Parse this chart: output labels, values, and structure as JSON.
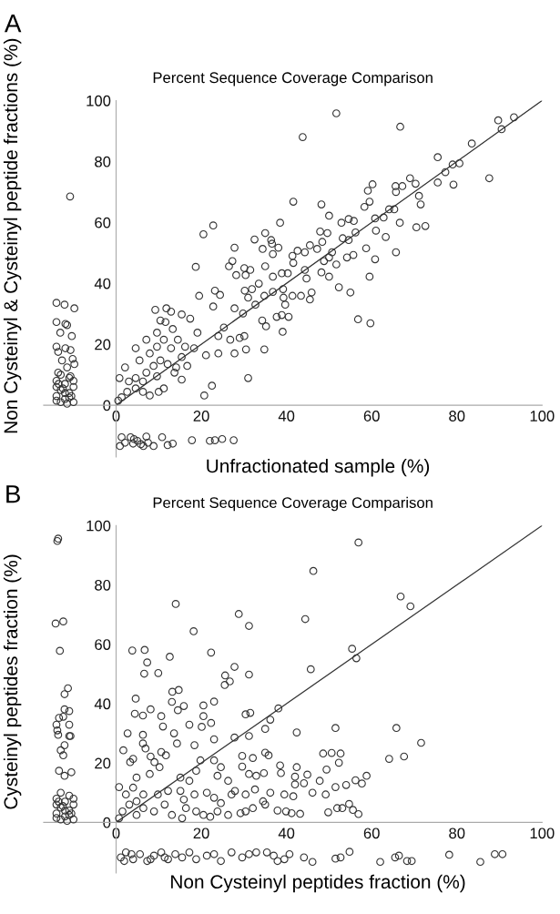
{
  "chart_data": [
    {
      "type": "scatter",
      "title": "Percent Sequence Coverage Comparison",
      "xlabel": "Unfractionated sample (%)",
      "ylabel": "Non Cysteinyl & Cysteinyl peptide fractions (%)",
      "annotations": [
        "A"
      ],
      "xlim": [
        -17,
        100
      ],
      "ylim": [
        -17,
        100
      ],
      "xticks": [
        0,
        20,
        40,
        60,
        80,
        100
      ],
      "yticks": [
        0,
        20,
        40,
        60,
        80,
        100
      ],
      "grid": false,
      "legend": false,
      "marker": "circle",
      "series": [
        {
          "color": "#333333",
          "x": [
            51.7,
            66.7,
            43.8,
            89.7,
            93.4,
            90.5,
            87.6,
            83.5,
            80.6,
            79,
            79.2,
            75.5,
            75.5,
            77.3,
            69,
            70.3,
            71.1,
            71.5,
            70.5,
            72.6,
            65.6,
            67.2,
            65.7,
            66.6,
            65.7,
            65.3,
            64.1,
            62.8,
            60.8,
            61,
            60.2,
            59.1,
            59.5,
            58.3,
            58.7,
            59.5,
            59.7,
            56.8,
            60.8,
            63.3,
            55.8,
            54.6,
            56.2,
            54.6,
            52.9,
            53.2,
            55.7,
            54.2,
            55,
            52.3,
            51.7,
            50,
            50.7,
            50,
            50,
            49.6,
            47.9,
            48.2,
            48.4,
            48.2,
            48.8,
            47.2,
            45.5,
            44.3,
            41.6,
            41.4,
            41.6,
            42.6,
            44.3,
            44.7,
            45.9,
            45.5,
            43.4,
            41.4,
            40.5,
            39.1,
            38.5,
            35,
            36.4,
            36.6,
            34.4,
            36.8,
            32.5,
            38.1,
            35,
            36.8,
            38.9,
            40.3,
            39.2,
            36.8,
            34.8,
            33.5,
            37.7,
            34.3,
            35.2,
            34.8,
            39.3,
            39.7,
            38.9,
            30.4,
            28.2,
            30.1,
            31.5,
            27.8,
            27.3,
            26.5,
            31,
            30.5,
            30.1,
            29,
            27.8,
            26.8,
            29.8,
            31,
            31.9,
            32.7,
            30.2,
            27.8,
            22.8,
            20.5,
            18.7,
            19.5,
            23.2,
            24.4,
            22.8,
            25.3,
            24,
            24,
            22.5,
            20.7,
            21.1,
            19.1,
            17.4,
            15.4,
            16.2,
            18.3,
            16.7,
            15.4,
            12.9,
            11.8,
            9.2,
            10.4,
            11.6,
            13.3,
            9.6,
            11.2,
            12.9,
            9.6,
            7.9,
            10.4,
            12.1,
            13.7,
            8.8,
            7.1,
            9.6,
            6.3,
            4.6,
            3,
            4.6,
            6.3,
            2.6,
            1.3,
            0.5,
            10,
            11.2,
            7.9,
            4.6,
            7.1,
            5.5,
            2.1,
            0.8,
            14.5,
            15.4,
            14.1,
            -10.8,
            -14,
            -12.1,
            -9.8,
            -14,
            -11.9,
            -11.5,
            -13.1,
            -10.4,
            -14,
            -11.9,
            -10.7,
            -13.6,
            -10.2,
            -12.7,
            -9.8,
            -11.5,
            -13.6,
            -10.7,
            -14,
            -12,
            -10,
            -13,
            -11,
            -14,
            -12,
            -10,
            -13,
            -11,
            -12.5,
            -10.5,
            -14,
            -11.5,
            -13,
            -10,
            -12,
            -14,
            -11,
            -13.5,
            0.9,
            1.3,
            3.4,
            4.2,
            5,
            5.8,
            7.1,
            7.5,
            8.8,
            10.8,
            12.1,
            13.3,
            17.8,
            22,
            23.2,
            24.9,
            27.6,
            2.1,
            4,
            6.4
          ],
          "values": [
            95.8,
            91.4,
            88,
            93.5,
            94.5,
            90.6,
            74.5,
            85.9,
            79.4,
            79,
            72.4,
            81.4,
            73.1,
            76.5,
            74.5,
            72.7,
            68.7,
            65.9,
            58.4,
            58.8,
            71.9,
            71.9,
            70,
            59.9,
            50.2,
            64.3,
            64.3,
            61.6,
            61.3,
            57.3,
            72.5,
            70.4,
            66.8,
            65.1,
            51.5,
            42.2,
            26.9,
            28.2,
            47.9,
            55.2,
            60.5,
            61.1,
            56.7,
            54.2,
            59.9,
            54.8,
            49.3,
            48.5,
            37,
            38.7,
            46.2,
            48.5,
            50.2,
            42.2,
            62.2,
            56.5,
            57,
            65.9,
            53.6,
            43.6,
            47.3,
            51.3,
            52.5,
            50.2,
            66.8,
            49,
            46.7,
            50.7,
            44.4,
            41.6,
            37,
            34.7,
            35.9,
            35.9,
            29,
            24.1,
            59.9,
            56.5,
            54.2,
            53,
            51.3,
            49.6,
            54.4,
            51.7,
            45.6,
            42.2,
            43.3,
            43.3,
            38.1,
            37.2,
            35.9,
            39.9,
            29,
            27.8,
            25.9,
            18.3,
            35.3,
            33,
            29.6,
            42.7,
            42.7,
            45,
            44.4,
            51.7,
            47.3,
            45.6,
            8.9,
            18.3,
            22.7,
            22.1,
            17,
            21.5,
            30.1,
            35.3,
            38.1,
            33,
            37.6,
            31.8,
            59,
            56.1,
            45.4,
            35.9,
            37.6,
            36.2,
            32.4,
            25.5,
            22.7,
            17,
            6.4,
            3.2,
            16.4,
            23.8,
            28.4,
            29.8,
            19.2,
            18.7,
            12.9,
            8.4,
            30.7,
            31.8,
            31.3,
            27.8,
            27.3,
            25,
            23.8,
            21.5,
            18.7,
            19.2,
            17,
            14.7,
            13.5,
            10.7,
            12.9,
            10.7,
            9.5,
            7.8,
            8.9,
            7.8,
            5.5,
            4.4,
            4.4,
            2.6,
            1.5,
            4.4,
            5.5,
            3.2,
            18.7,
            21.5,
            14.7,
            12.4,
            8.9,
            21.5,
            15.8,
            12.4,
            68.5,
            33.6,
            33,
            31.8,
            27.3,
            26.7,
            26.3,
            23.8,
            22.7,
            19.2,
            18.7,
            18.1,
            17.5,
            15.2,
            14.7,
            13.5,
            12.4,
            10.7,
            9.5,
            8,
            7,
            6,
            5,
            4,
            3,
            2,
            1,
            1,
            9,
            5.5,
            3,
            6,
            0.5,
            10,
            8,
            4,
            1.5,
            2.5,
            7,
            -13.4,
            -10.5,
            -10.5,
            -11.1,
            -11.7,
            -12.8,
            -10.3,
            -12.3,
            -13.4,
            -10.5,
            -13.1,
            -12.6,
            -11.5,
            -11.7,
            -11.5,
            -11.1,
            -11.5,
            -12.3,
            -12.6,
            -13.4
          ]
        },
        {
          "type": "line",
          "color": "#333333",
          "x": [
            0,
            100
          ],
          "values": [
            0,
            100
          ],
          "marker": "none",
          "line_style": "solid"
        }
      ]
    },
    {
      "type": "scatter",
      "title": "Percent Sequence Coverage Comparison",
      "xlabel": "Non Cysteinyl peptides fraction (%)",
      "ylabel": "Cysteinyl peptides fraction (%)",
      "annotations": [
        "B"
      ],
      "xlim": [
        -17,
        100
      ],
      "ylim": [
        -17,
        100
      ],
      "xticks": [
        0,
        20,
        40,
        60,
        80,
        100
      ],
      "yticks": [
        0,
        20,
        40,
        60,
        80,
        100
      ],
      "grid": false,
      "legend": false,
      "marker": "circle",
      "series": [
        {
          "color": "#333333",
          "x": [
            56.9,
            46.3,
            66.8,
            69.1,
            44.4,
            28.8,
            31.2,
            14,
            18.2,
            55.4,
            56.4,
            45.7,
            22.3,
            3.8,
            6.7,
            7.3,
            6.6,
            9.9,
            12.6,
            27.8,
            25.6,
            26.7,
            25.5,
            31.2,
            4.6,
            4.4,
            6.3,
            8.1,
            10.6,
            11,
            13.1,
            13.2,
            14.7,
            15.9,
            14.5,
            13.6,
            14.3,
            20.5,
            23,
            20.5,
            22.3,
            17.2,
            20.1,
            18.4,
            23,
            27.8,
            30.4,
            31.5,
            31.2,
            35,
            36.2,
            38.1,
            42.4,
            51.5,
            65.8,
            71.6,
            67.6,
            64.1,
            50.6,
            48.6,
            52.7,
            49.4,
            52.3,
            58.8,
            57.7,
            56.2,
            54,
            51.5,
            49.2,
            46.1,
            44.9,
            42.4,
            38.5,
            38.7,
            35,
            35.8,
            32.1,
            29.6,
            29.6,
            31.2,
            32.9,
            34.7,
            42,
            42,
            44.1,
            47.8,
            39.5,
            41.6,
            36.2,
            34.5,
            35,
            37.9,
            39.9,
            41.2,
            43.2,
            49.8,
            51.9,
            53.1,
            54.7,
            55.6,
            56.9,
            0.7,
            1.7,
            2.7,
            3.3,
            4,
            6.9,
            6.3,
            6.3,
            8.1,
            9,
            10.6,
            11.7,
            10.2,
            7.9,
            4.8,
            2.3,
            3.1,
            1.5,
            0.7,
            4.8,
            6.4,
            8.9,
            11.4,
            13.1,
            15.5,
            16.4,
            18.8,
            20.5,
            22.1,
            23.8,
            26.3,
            29.2,
            30.4,
            32.1,
            23,
            24.6,
            27.1,
            18.4,
            15.1,
            12.2,
            9.8,
            6.4,
            4,
            4.8,
            15.1,
            17.2,
            18.8,
            19.8,
            23,
            24.6,
            23.8,
            26.3,
            27.9,
            30.4,
            32.6,
            21.3,
            15.9,
            -13.6,
            -13.8,
            -14.2,
            -12.4,
            -13.2,
            -11.3,
            -12.1,
            -12.1,
            -11,
            -13.4,
            -12.4,
            -14,
            -11,
            -13.8,
            -13.6,
            -11,
            -10.7,
            -12.1,
            -13,
            -12.4,
            -13.4,
            -10.5,
            -12.1,
            -14,
            -12,
            -10,
            -13,
            -11,
            -14,
            -12,
            -10,
            -13,
            -11,
            -12.5,
            -10.5,
            -14,
            -11.5,
            -13,
            -10,
            -12,
            -14,
            -11,
            -13.5,
            1.1,
            2.3,
            4,
            5.6,
            7.3,
            8.9,
            10.6,
            12.2,
            13.9,
            15.5,
            17.2,
            18.8,
            21.3,
            23,
            24.6,
            27.1,
            29.6,
            31.2,
            32.9,
            35.4,
            37,
            37.9,
            39.5,
            40.7,
            44.1,
            46.1,
            51.5,
            52.7,
            54.8,
            62,
            65.5,
            66.4,
            68.3,
            69.4,
            78.2,
            85.5,
            88.9,
            90.7,
            1.9,
            3.6,
            8.1,
            11.4
          ],
          "values": [
            94.3,
            84.7,
            76.1,
            72.8,
            68.5,
            70.2,
            66.2,
            73.6,
            64.4,
            58.5,
            55.3,
            51.6,
            57.2,
            57.9,
            58.1,
            53.9,
            50.1,
            50.3,
            55.8,
            52.4,
            49.5,
            47.5,
            46.3,
            49.8,
            41.7,
            36.6,
            36,
            38.1,
            35.8,
            32.3,
            40.6,
            44,
            44.6,
            39.2,
            37.8,
            30,
            26.6,
            39.4,
            40.7,
            35.8,
            33.5,
            32.9,
            32.2,
            26,
            28,
            28.6,
            36.4,
            36.9,
            29.1,
            31.5,
            34.6,
            38.4,
            30.3,
            31.8,
            31.8,
            26.8,
            22.2,
            21.4,
            23.4,
            23.2,
            23.2,
            17.8,
            20.1,
            15.7,
            13.1,
            14.2,
            12.6,
            11.9,
            9.4,
            10,
            16.1,
            18.6,
            19.2,
            16.6,
            23.5,
            22.6,
            21.7,
            22.4,
            18.8,
            16.3,
            15.7,
            16.6,
            15.4,
            12.8,
            13.2,
            14,
            9.4,
            8.8,
            10,
            7.1,
            6,
            4,
            3.7,
            3.1,
            2.9,
            3.4,
            4.8,
            4.8,
            6.2,
            4.2,
            2.8,
            11.9,
            24.3,
            30,
            20.3,
            21.4,
            24.9,
            26.6,
            29.5,
            22.2,
            20.3,
            23.7,
            22.6,
            18.6,
            16.3,
            15.1,
            9.4,
            6,
            3.7,
            1.4,
            2.5,
            4.8,
            3.7,
            6,
            2.5,
            1.4,
            4.8,
            3.7,
            2.5,
            1.9,
            3.7,
            2.5,
            3.1,
            3.7,
            4.8,
            8.3,
            6.5,
            9.4,
            9.4,
            10.6,
            10.6,
            9.4,
            9.4,
            11.7,
            7.1,
            15.1,
            14,
            17.4,
            20.9,
            20.9,
            18.6,
            15.7,
            14,
            10.6,
            9.4,
            11.1,
            10,
            7.7,
            95.6,
            94.8,
            67,
            67.7,
            57.8,
            45.2,
            43.2,
            38.1,
            37.5,
            35.2,
            35.6,
            32.9,
            32.9,
            31,
            29.5,
            29.1,
            29.1,
            26,
            24.3,
            22.6,
            17.4,
            16.9,
            15.7,
            8,
            7,
            6,
            5,
            4,
            3,
            2,
            1,
            1,
            9,
            5.5,
            3,
            6,
            0.5,
            10,
            8,
            4,
            1.5,
            2.5,
            7,
            -11.8,
            -10.1,
            -12.4,
            -10.7,
            -13,
            -11.2,
            -10.1,
            -12.4,
            -10.7,
            -11.8,
            -10.1,
            -12.4,
            -11.2,
            -10.7,
            -13,
            -10.1,
            -11.8,
            -10.7,
            -10.1,
            -10.1,
            -11.2,
            -13,
            -12.4,
            -10.7,
            -11.8,
            -13.3,
            -12.2,
            -11.8,
            -9.9,
            -13.3,
            -11.8,
            -11.2,
            -13,
            -13,
            -10.9,
            -13.3,
            -10.7,
            -10.7,
            -13,
            -10.7,
            -12.4,
            -11.8
          ]
        },
        {
          "type": "line",
          "color": "#333333",
          "x": [
            0,
            100
          ],
          "values": [
            0,
            100
          ],
          "marker": "none",
          "line_style": "solid"
        }
      ]
    }
  ]
}
